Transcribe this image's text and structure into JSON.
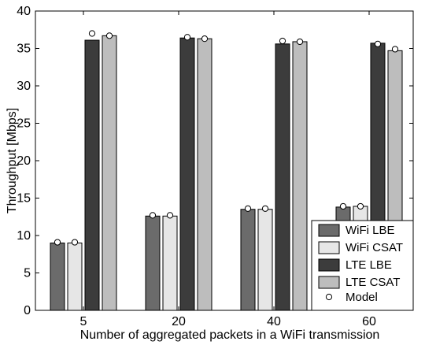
{
  "chart_data": {
    "type": "bar",
    "title": "",
    "xlabel": "Number of aggregated packets in a WiFi transmission",
    "ylabel": "Throughput [Mbps]",
    "categories": [
      "5",
      "20",
      "40",
      "60"
    ],
    "ylim": [
      0,
      40
    ],
    "yticks": [
      "0",
      "5",
      "10",
      "15",
      "20",
      "25",
      "30",
      "35",
      "40"
    ],
    "grid": false,
    "legend_position": "bottom-right",
    "series": [
      {
        "name": "WiFi LBE",
        "color": "#6b6b6b",
        "values": [
          9.0,
          12.6,
          13.5,
          13.8
        ]
      },
      {
        "name": "WiFi CSAT",
        "color": "#e6e6e6",
        "values": [
          9.0,
          12.6,
          13.5,
          13.9
        ]
      },
      {
        "name": "LTE LBE",
        "color": "#3c3c3c",
        "values": [
          36.1,
          36.4,
          35.6,
          35.7
        ]
      },
      {
        "name": "LTE CSAT",
        "color": "#bdbdbd",
        "values": [
          36.7,
          36.3,
          35.9,
          34.7
        ]
      }
    ],
    "model": {
      "name": "Model",
      "marker": "open-circle",
      "values": [
        [
          9.1,
          9.1,
          37.0,
          36.7
        ],
        [
          12.7,
          12.7,
          36.5,
          36.3
        ],
        [
          13.6,
          13.6,
          36.0,
          35.9
        ],
        [
          13.9,
          13.9,
          35.6,
          34.9
        ]
      ]
    }
  }
}
